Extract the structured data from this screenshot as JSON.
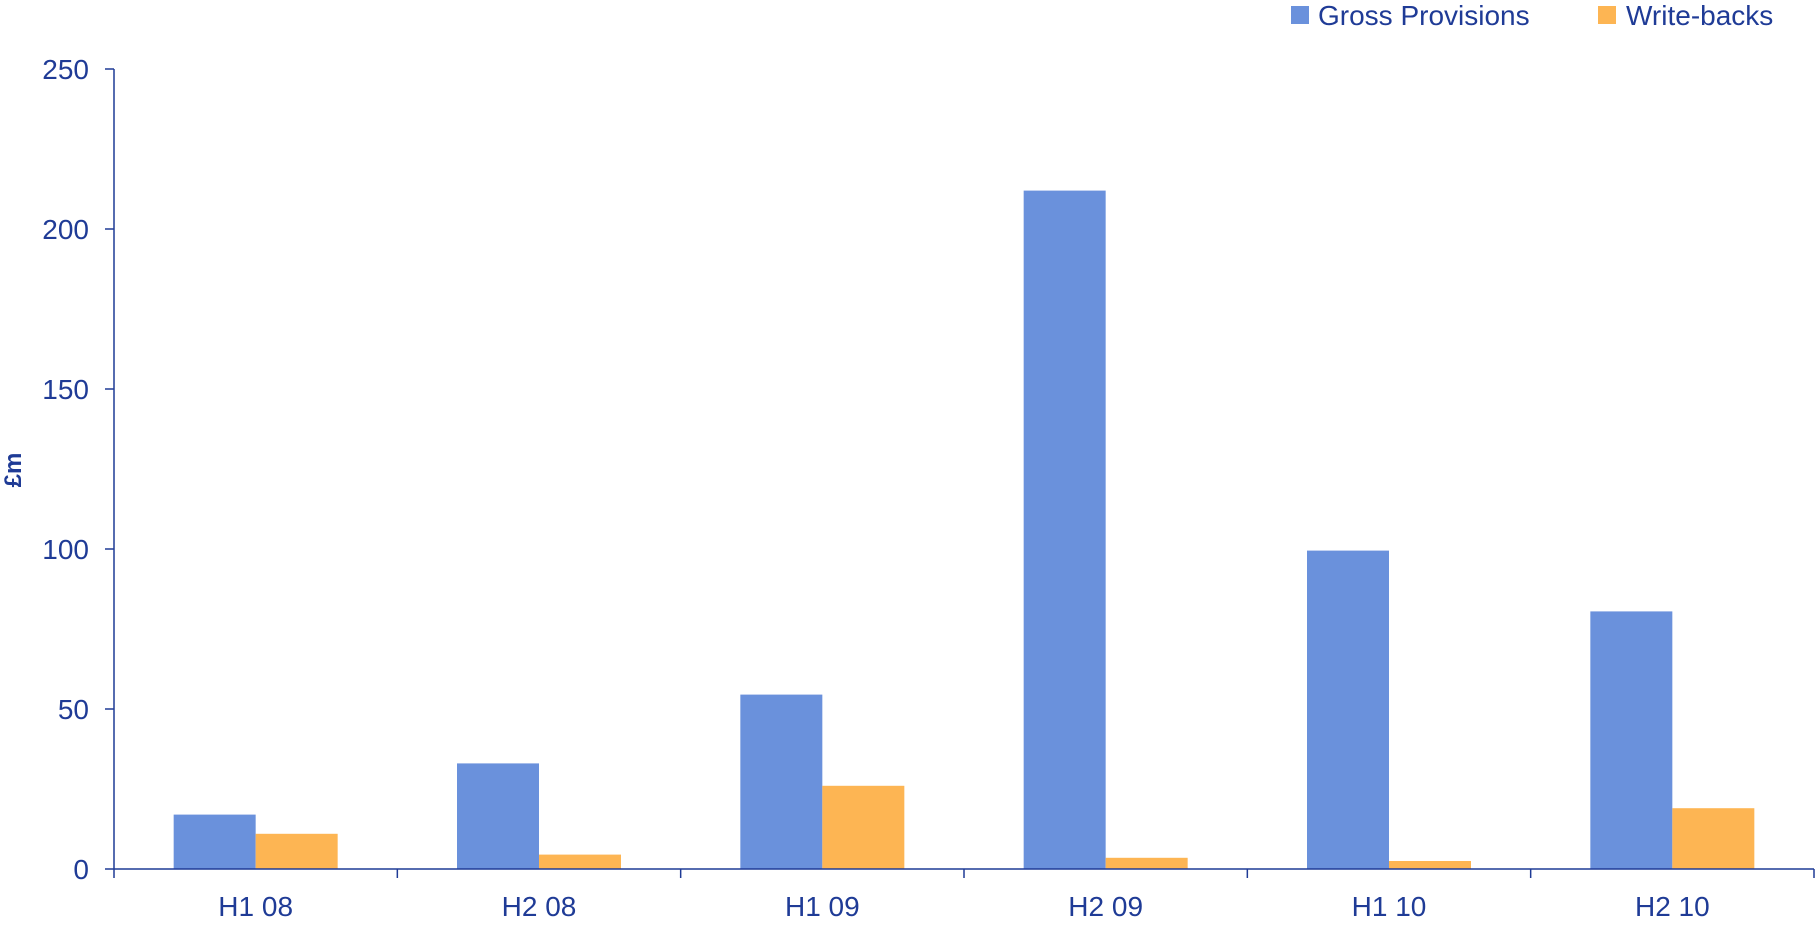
{
  "chart_data": {
    "type": "bar",
    "categories": [
      "H1 08",
      "H2 08",
      "H1 09",
      "H2 09",
      "H1 10",
      "H2 10"
    ],
    "series": [
      {
        "name": "Gross Provisions",
        "color": "#6a91dc",
        "values": [
          17,
          33,
          54.5,
          212,
          99.5,
          80.5
        ]
      },
      {
        "name": "Write-backs",
        "color": "#fdb553",
        "values": [
          11,
          4.5,
          26,
          3.5,
          2.5,
          19
        ]
      }
    ],
    "ylabel": "£m",
    "xlabel": "",
    "ylim": [
      0,
      250
    ],
    "yticks": [
      0,
      50,
      100,
      150,
      200,
      250
    ],
    "grid": false,
    "legend_position": "top-right",
    "axis_color": "#1f3b96"
  }
}
